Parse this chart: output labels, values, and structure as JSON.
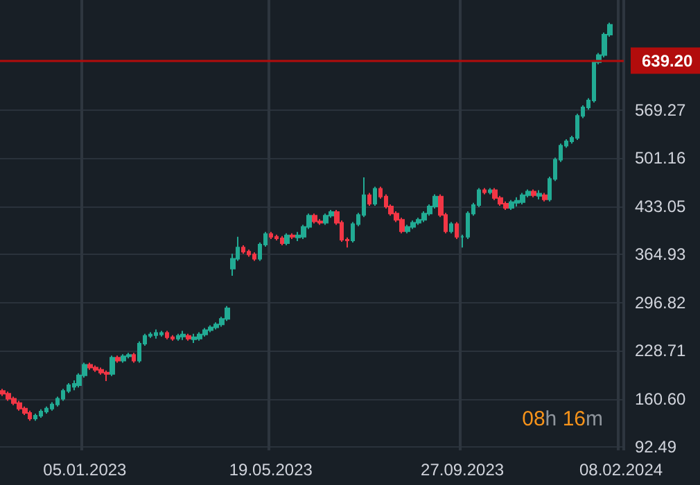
{
  "chart_data": {
    "type": "candlestick",
    "categories": [
      null,
      null,
      null,
      null,
      null,
      null,
      null,
      null,
      null,
      null,
      null,
      null,
      null,
      null,
      null,
      "05.01.2023",
      null,
      null,
      null,
      null,
      null,
      null,
      null,
      null,
      null,
      null,
      null,
      null,
      null,
      null,
      null,
      null,
      null,
      null,
      null,
      null,
      null,
      null,
      null,
      null,
      null,
      null,
      null,
      null,
      null,
      null,
      null,
      null,
      null,
      "19.05.2023",
      null,
      null,
      null,
      null,
      null,
      null,
      null,
      null,
      null,
      null,
      null,
      null,
      null,
      null,
      null,
      null,
      null,
      null,
      null,
      null,
      null,
      null,
      null,
      null,
      null,
      null,
      null,
      null,
      null,
      null,
      null,
      null,
      null,
      null,
      "27.09.2023",
      null,
      null,
      null,
      null,
      null,
      null,
      null,
      null,
      null,
      null,
      null,
      null,
      null,
      null,
      null,
      null,
      null,
      null,
      null,
      null,
      null,
      null,
      null,
      null,
      null,
      null,
      null,
      null,
      "08.02.2024"
    ],
    "ohlc": [
      [
        172,
        175,
        165,
        168
      ],
      [
        168,
        171,
        158,
        161
      ],
      [
        161,
        164,
        152,
        155
      ],
      [
        155,
        158,
        144,
        147
      ],
      [
        147,
        150,
        138,
        141
      ],
      [
        141,
        144,
        130,
        133
      ],
      [
        133,
        140,
        130,
        137
      ],
      [
        137,
        146,
        134,
        143
      ],
      [
        143,
        150,
        140,
        147
      ],
      [
        147,
        156,
        144,
        153
      ],
      [
        153,
        164,
        150,
        161
      ],
      [
        161,
        175,
        158,
        172
      ],
      [
        172,
        183,
        169,
        180
      ],
      [
        178,
        187,
        173,
        182
      ],
      [
        180,
        197,
        177,
        194
      ],
      [
        194,
        212,
        191,
        209
      ],
      [
        209,
        212,
        202,
        205
      ],
      [
        205,
        208,
        199,
        202
      ],
      [
        202,
        205,
        195,
        198
      ],
      [
        198,
        201,
        186,
        196
      ],
      [
        196,
        222,
        193,
        219
      ],
      [
        219,
        222,
        212,
        215
      ],
      [
        215,
        224,
        212,
        221
      ],
      [
        221,
        226,
        218,
        223
      ],
      [
        223,
        226,
        212,
        215
      ],
      [
        215,
        242,
        212,
        239
      ],
      [
        239,
        253,
        236,
        250
      ],
      [
        250,
        255,
        247,
        252
      ],
      [
        251,
        259,
        246,
        254
      ],
      [
        252,
        257,
        249,
        254
      ],
      [
        254,
        257,
        245,
        248
      ],
      [
        248,
        251,
        243,
        246
      ],
      [
        246,
        253,
        243,
        250
      ],
      [
        249,
        257,
        244,
        252
      ],
      [
        250,
        253,
        243,
        246
      ],
      [
        245,
        253,
        240,
        248
      ],
      [
        246,
        255,
        243,
        252
      ],
      [
        252,
        261,
        249,
        258
      ],
      [
        258,
        265,
        255,
        262
      ],
      [
        262,
        269,
        259,
        266
      ],
      [
        266,
        277,
        263,
        274
      ],
      [
        274,
        292,
        271,
        289
      ],
      [
        345,
        366,
        335,
        359
      ],
      [
        359,
        390,
        356,
        375
      ],
      [
        375,
        378,
        366,
        369
      ],
      [
        369,
        372,
        362,
        365
      ],
      [
        365,
        368,
        356,
        359
      ],
      [
        359,
        382,
        356,
        379
      ],
      [
        379,
        397,
        376,
        394
      ],
      [
        394,
        397,
        387,
        390
      ],
      [
        390,
        393,
        385,
        388
      ],
      [
        388,
        391,
        378,
        381
      ],
      [
        381,
        395,
        378,
        392
      ],
      [
        392,
        395,
        387,
        390
      ],
      [
        389,
        397,
        384,
        392
      ],
      [
        390,
        407,
        387,
        404
      ],
      [
        404,
        423,
        401,
        420
      ],
      [
        420,
        423,
        409,
        412
      ],
      [
        412,
        415,
        407,
        410
      ],
      [
        410,
        423,
        407,
        420
      ],
      [
        420,
        428,
        417,
        425
      ],
      [
        425,
        428,
        407,
        410
      ],
      [
        410,
        413,
        383,
        386
      ],
      [
        386,
        389,
        375,
        385
      ],
      [
        385,
        411,
        382,
        408
      ],
      [
        408,
        424,
        405,
        421
      ],
      [
        421,
        474,
        418,
        449
      ],
      [
        449,
        452,
        434,
        437
      ],
      [
        437,
        461,
        434,
        458
      ],
      [
        458,
        461,
        444,
        447
      ],
      [
        447,
        450,
        430,
        433
      ],
      [
        433,
        436,
        420,
        423
      ],
      [
        423,
        426,
        411,
        414
      ],
      [
        414,
        417,
        395,
        398
      ],
      [
        398,
        407,
        395,
        404
      ],
      [
        404,
        413,
        401,
        410
      ],
      [
        410,
        417,
        407,
        414
      ],
      [
        414,
        426,
        411,
        423
      ],
      [
        423,
        436,
        420,
        433
      ],
      [
        433,
        450,
        430,
        447
      ],
      [
        447,
        450,
        418,
        421
      ],
      [
        421,
        424,
        395,
        398
      ],
      [
        398,
        411,
        395,
        408
      ],
      [
        408,
        411,
        387,
        390
      ],
      [
        390,
        393,
        375,
        390
      ],
      [
        390,
        426,
        387,
        423
      ],
      [
        423,
        438,
        420,
        435
      ],
      [
        435,
        459,
        432,
        456
      ],
      [
        456,
        459,
        450,
        453
      ],
      [
        453,
        459,
        450,
        456
      ],
      [
        456,
        459,
        442,
        445
      ],
      [
        445,
        448,
        434,
        437
      ],
      [
        437,
        440,
        428,
        431
      ],
      [
        431,
        442,
        428,
        439
      ],
      [
        438,
        446,
        433,
        441
      ],
      [
        439,
        452,
        436,
        449
      ],
      [
        449,
        457,
        446,
        454
      ],
      [
        454,
        457,
        446,
        449
      ],
      [
        448,
        456,
        443,
        451
      ],
      [
        449,
        452,
        440,
        443
      ],
      [
        443,
        475,
        440,
        472
      ],
      [
        472,
        502,
        469,
        499
      ],
      [
        499,
        522,
        496,
        519
      ],
      [
        519,
        528,
        516,
        525
      ],
      [
        525,
        533,
        522,
        530
      ],
      [
        530,
        564,
        527,
        561
      ],
      [
        561,
        576,
        558,
        573
      ],
      [
        573,
        586,
        570,
        583
      ],
      [
        583,
        640,
        580,
        637
      ],
      [
        637,
        650,
        634,
        647
      ],
      [
        647,
        679,
        644,
        676
      ],
      [
        676,
        693,
        673,
        690
      ],
      null,
      null
    ],
    "colors": [
      "#f23645",
      "#f23645",
      "#f23645",
      "#f23645",
      "#f23645",
      "#f23645",
      "#22ab94",
      "#22ab94",
      "#22ab94",
      "#22ab94",
      "#22ab94",
      "#22ab94",
      "#22ab94",
      "#22ab94",
      "#22ab94",
      "#22ab94",
      "#f23645",
      "#f23645",
      "#f23645",
      "#f23645",
      "#22ab94",
      "#f23645",
      "#22ab94",
      "#22ab94",
      "#f23645",
      "#22ab94",
      "#22ab94",
      "#22ab94",
      "#22ab94",
      "#22ab94",
      "#f23645",
      "#f23645",
      "#22ab94",
      "#22ab94",
      "#f23645",
      "#22ab94",
      "#22ab94",
      "#22ab94",
      "#22ab94",
      "#22ab94",
      "#22ab94",
      "#22ab94",
      "#22ab94",
      "#22ab94",
      "#f23645",
      "#f23645",
      "#f23645",
      "#22ab94",
      "#22ab94",
      "#f23645",
      "#f23645",
      "#f23645",
      "#22ab94",
      "#f23645",
      "#22ab94",
      "#22ab94",
      "#22ab94",
      "#f23645",
      "#f23645",
      "#22ab94",
      "#22ab94",
      "#f23645",
      "#f23645",
      "#f23645",
      "#22ab94",
      "#22ab94",
      "#22ab94",
      "#f23645",
      "#22ab94",
      "#f23645",
      "#f23645",
      "#f23645",
      "#f23645",
      "#f23645",
      "#22ab94",
      "#22ab94",
      "#22ab94",
      "#22ab94",
      "#22ab94",
      "#22ab94",
      "#f23645",
      "#f23645",
      "#22ab94",
      "#f23645",
      "#22ab94",
      "#22ab94",
      "#22ab94",
      "#22ab94",
      "#f23645",
      "#22ab94",
      "#f23645",
      "#f23645",
      "#f23645",
      "#22ab94",
      "#22ab94",
      "#22ab94",
      "#22ab94",
      "#f23645",
      "#22ab94",
      "#f23645",
      "#22ab94",
      "#22ab94",
      "#22ab94",
      "#22ab94",
      "#22ab94",
      "#22ab94",
      "#22ab94",
      "#22ab94",
      "#22ab94",
      "#22ab94",
      "#22ab94",
      "#22ab94",
      null,
      null
    ],
    "ylim": [
      88,
      725
    ],
    "yticks": [
      {
        "value": 92.49,
        "label": "92.49"
      },
      {
        "value": 160.6,
        "label": "160.60"
      },
      {
        "value": 228.71,
        "label": "228.71"
      },
      {
        "value": 296.82,
        "label": "296.82"
      },
      {
        "value": 364.93,
        "label": "364.93"
      },
      {
        "value": 433.05,
        "label": "433.05"
      },
      {
        "value": 501.16,
        "label": "501.16"
      },
      {
        "value": 569.27,
        "label": "569.27"
      }
    ],
    "ref_lines": [
      {
        "axis": "y",
        "value": 639.2,
        "label": "639.20",
        "color": "#b20c0c"
      }
    ],
    "grid": true,
    "annotations": [
      "08h 16m"
    ]
  }
}
